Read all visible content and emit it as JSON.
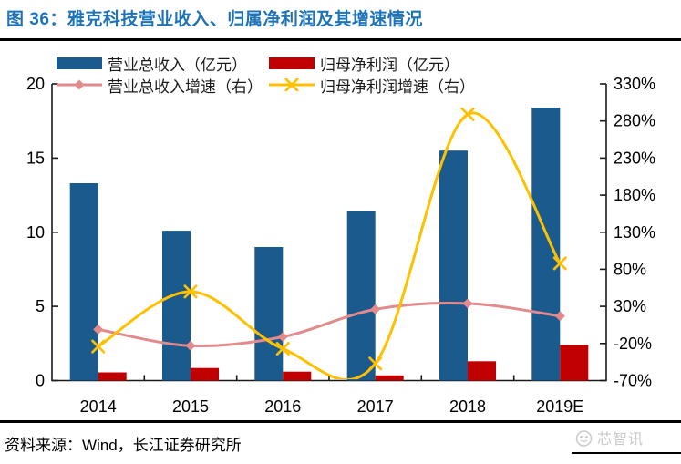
{
  "figure": {
    "title": "图 36：雅克科技营业收入、归属净利润及其增速情况",
    "source_note": "资料来源：Wind，长江证券研究所",
    "watermark": "芯智讯"
  },
  "colors": {
    "title_accent": "#1E73B8",
    "axis": "#1A1A1A",
    "watermark": "#C9C9C9",
    "rule": "#000000"
  },
  "chart_data": {
    "type": "bar",
    "subtype": "bar+line combo, dual axis",
    "title": "雅克科技营业收入、归属净利润及其增速情况",
    "categories": [
      "2014",
      "2015",
      "2016",
      "2017",
      "2018",
      "2019E"
    ],
    "series": [
      {
        "key": "revenue",
        "name": "营业总收入（亿元）",
        "type": "bar",
        "axis": "left",
        "marker": "none",
        "color": "#1A5A8C",
        "values": [
          13.3,
          10.1,
          9.0,
          11.4,
          15.5,
          18.4
        ]
      },
      {
        "key": "profit",
        "name": "归母净利润（亿元）",
        "type": "bar",
        "axis": "left",
        "marker": "none",
        "color": "#C00000",
        "values": [
          0.55,
          0.85,
          0.6,
          0.35,
          1.3,
          2.4
        ]
      },
      {
        "key": "revenue_growth",
        "name": "营业总收入增速（右）",
        "type": "line",
        "axis": "right",
        "marker": "diamond",
        "color": "#E28A8C",
        "values": [
          -1,
          -23,
          -11,
          26,
          34,
          17
        ]
      },
      {
        "key": "profit_growth",
        "name": "归母净利润增速（右）",
        "type": "line",
        "axis": "right",
        "marker": "x",
        "color": "#FFC000",
        "values": [
          -24,
          50,
          -27,
          -47,
          289,
          88
        ]
      }
    ],
    "left_axis": {
      "min": 0,
      "max": 20,
      "ticks": [
        0,
        5,
        10,
        15,
        20
      ]
    },
    "right_axis": {
      "min": -70,
      "max": 330,
      "ticks": [
        -70,
        -20,
        30,
        80,
        130,
        180,
        230,
        280,
        330
      ],
      "suffix": "%"
    },
    "legend_position": "top",
    "grid": false
  }
}
